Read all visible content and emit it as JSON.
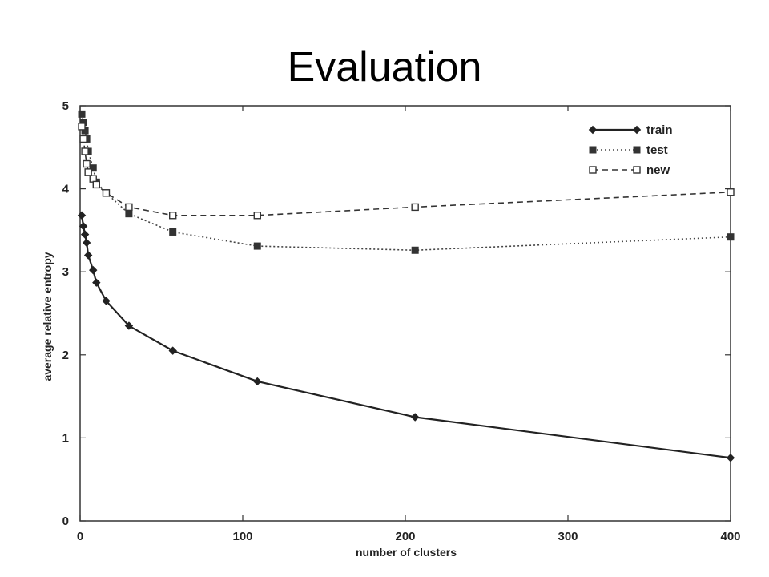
{
  "slide": {
    "title": "Evaluation"
  },
  "chart_data": {
    "type": "line",
    "xlabel": "number of clusters",
    "ylabel": "average relative entropy",
    "xlim": [
      0,
      400
    ],
    "ylim": [
      0,
      5
    ],
    "xticks": [
      0,
      100,
      200,
      300,
      400
    ],
    "yticks": [
      0,
      1,
      2,
      3,
      4,
      5
    ],
    "grid": false,
    "legend_position": "top-right",
    "series": [
      {
        "name": "train",
        "line_style": "solid",
        "marker": "filled-diamond",
        "x": [
          1,
          2,
          3,
          4,
          5,
          8,
          10,
          16,
          30,
          57,
          109,
          206,
          400
        ],
        "y": [
          3.68,
          3.55,
          3.45,
          3.35,
          3.2,
          3.02,
          2.87,
          2.65,
          2.35,
          2.05,
          1.68,
          1.25,
          0.76
        ]
      },
      {
        "name": "test",
        "line_style": "dotted",
        "marker": "filled-square",
        "x": [
          1,
          2,
          3,
          4,
          5,
          8,
          10,
          16,
          30,
          57,
          109,
          206,
          400
        ],
        "y": [
          4.9,
          4.8,
          4.7,
          4.6,
          4.45,
          4.25,
          4.08,
          3.95,
          3.7,
          3.48,
          3.31,
          3.26,
          3.42
        ]
      },
      {
        "name": "new",
        "line_style": "dashed",
        "marker": "open-square",
        "x": [
          1,
          2,
          3,
          4,
          5,
          8,
          10,
          16,
          30,
          57,
          109,
          206,
          400
        ],
        "y": [
          4.75,
          4.6,
          4.45,
          4.3,
          4.2,
          4.12,
          4.05,
          3.95,
          3.78,
          3.68,
          3.68,
          3.78,
          3.96
        ]
      }
    ]
  }
}
